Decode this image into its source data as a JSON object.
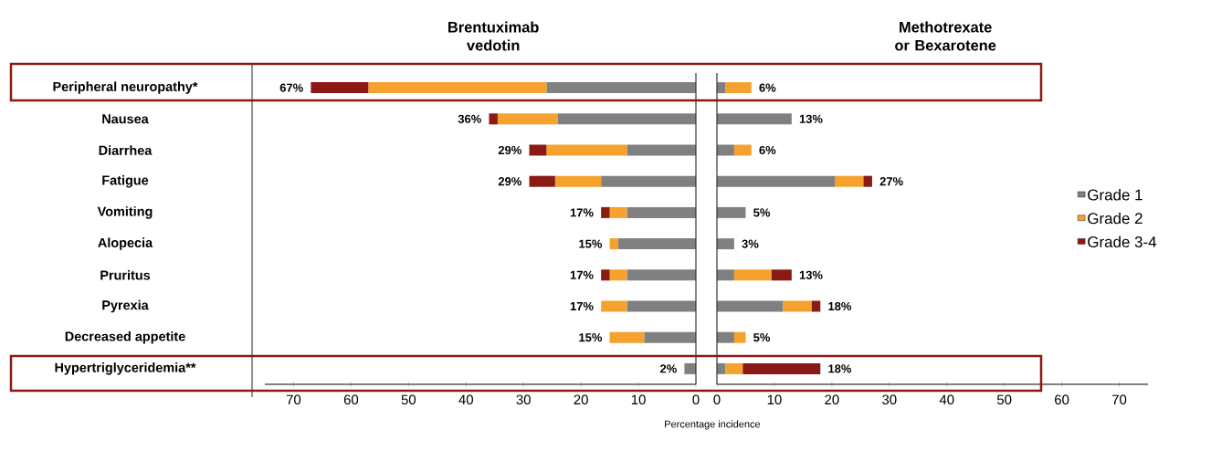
{
  "chart_data": [
    {
      "type": "bar",
      "orientation": "horizontal",
      "stacked": true,
      "title": "Brentuximab vedotin",
      "xlabel": "Percentage incidence",
      "categories": [
        "Peripheral neuropathy*",
        "Nausea",
        "Diarrhea",
        "Fatigue",
        "Vomiting",
        "Alopecia",
        "Pruritus",
        "Pyrexia",
        "Decreased appetite",
        "Hypertriglyceridemia**"
      ],
      "xlim": [
        75,
        0
      ],
      "xticks": [
        0,
        10,
        20,
        30,
        40,
        50,
        60,
        70
      ],
      "series": [
        {
          "color": "#808080",
          "values": [
            26,
            24,
            12,
            16.5,
            12,
            13.5,
            12,
            12,
            9,
            2
          ]
        },
        {
          "color": "#f4a22d",
          "values": [
            31,
            10.5,
            14,
            8,
            3,
            1.5,
            3,
            4.5,
            6,
            0
          ]
        },
        {
          "color": "#8b1a14",
          "values": [
            10,
            1.5,
            3,
            4.5,
            1.5,
            0,
            1.5,
            0,
            0,
            0
          ]
        }
      ],
      "totals": [
        "67%",
        "36%",
        "29%",
        "29%",
        "17%",
        "15%",
        "17%",
        "17%",
        "15%",
        "2%"
      ]
    },
    {
      "type": "bar",
      "orientation": "horizontal",
      "stacked": true,
      "title": "Methotrexate or Bexarotene",
      "categories": [
        null,
        null,
        null,
        null,
        null,
        null,
        null,
        null,
        null,
        null
      ],
      "xlim": [
        0,
        75
      ],
      "xticks": [
        0,
        10,
        20,
        30,
        40,
        50,
        60,
        70
      ],
      "legend": "right",
      "series": [
        {
          "name": "Grade 1",
          "color": "#808080",
          "values": [
            1.5,
            13,
            3,
            20.5,
            5,
            3,
            3,
            11.5,
            3,
            1.5
          ]
        },
        {
          "name": "Grade 2",
          "color": "#f4a22d",
          "values": [
            4.5,
            0,
            3,
            5,
            0,
            0,
            6.5,
            5,
            2,
            3
          ]
        },
        {
          "name": "Grade 3-4",
          "color": "#8b1a14",
          "values": [
            0,
            0,
            0,
            1.5,
            0,
            0,
            3.5,
            1.5,
            0,
            13.5
          ]
        }
      ],
      "totals": [
        "6%",
        "13%",
        "6%",
        "27%",
        "5%",
        "3%",
        "13%",
        "18%",
        "5%",
        "18%"
      ]
    }
  ]
}
